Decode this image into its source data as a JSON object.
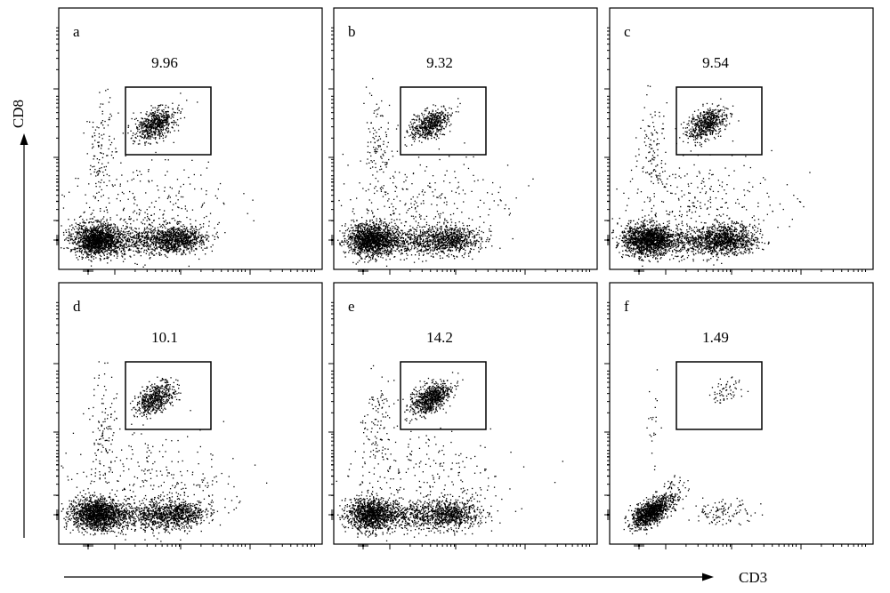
{
  "chart_data": {
    "type": "scatter",
    "subtype": "flow-cytometry-dot-plot",
    "xlabel": "CD3",
    "ylabel": "CD8",
    "x_scale": "log",
    "y_scale": "log",
    "layout": "2x3 grid",
    "panels": [
      {
        "letter": "a",
        "gate_percent": "9.96",
        "gate_density": 1.0,
        "lower_left_density": 1.0,
        "lower_right_density": 0.8
      },
      {
        "letter": "b",
        "gate_percent": "9.32",
        "gate_density": 0.9,
        "lower_left_density": 1.0,
        "lower_right_density": 0.6
      },
      {
        "letter": "c",
        "gate_percent": "9.54",
        "gate_density": 0.95,
        "lower_left_density": 1.0,
        "lower_right_density": 0.9
      },
      {
        "letter": "d",
        "gate_percent": "10.1",
        "gate_density": 0.9,
        "lower_left_density": 1.0,
        "lower_right_density": 0.7
      },
      {
        "letter": "e",
        "gate_percent": "14.2",
        "gate_density": 1.2,
        "lower_left_density": 0.8,
        "lower_right_density": 0.6
      },
      {
        "letter": "f",
        "gate_percent": "1.49",
        "gate_density": 0.15,
        "lower_left_density": 0.7,
        "lower_right_density": 0.12
      }
    ]
  }
}
